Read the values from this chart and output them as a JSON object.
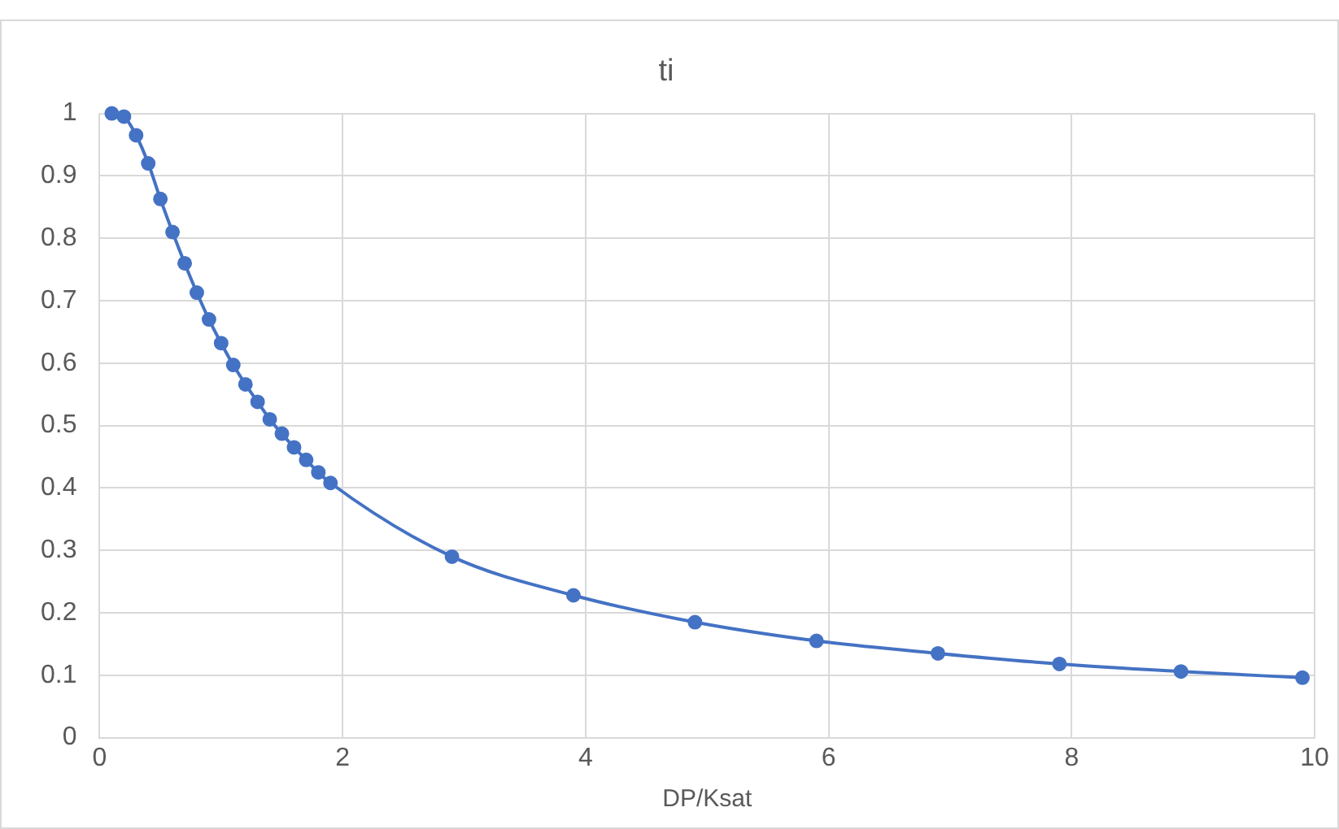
{
  "chart_data": {
    "type": "line",
    "title": "ti",
    "xlabel": "DP/Ksat",
    "x": [
      0.1,
      0.2,
      0.3,
      0.4,
      0.5,
      0.6,
      0.7,
      0.8,
      0.9,
      1.0,
      1.1,
      1.2,
      1.3,
      1.4,
      1.5,
      1.6,
      1.7,
      1.8,
      1.9,
      2.9,
      3.9,
      4.9,
      5.9,
      6.9,
      7.9,
      8.9,
      9.9
    ],
    "series": [
      {
        "color": "#4472c4",
        "values": [
          1.0,
          0.995,
          0.965,
          0.92,
          0.863,
          0.81,
          0.76,
          0.713,
          0.67,
          0.632,
          0.597,
          0.566,
          0.538,
          0.51,
          0.487,
          0.465,
          0.445,
          0.425,
          0.408,
          0.29,
          0.228,
          0.185,
          0.155,
          0.135,
          0.118,
          0.106,
          0.096
        ]
      }
    ],
    "xlim": [
      0,
      10
    ],
    "xticks": [
      0,
      2,
      4,
      6,
      8,
      10
    ],
    "ylim": [
      0,
      1
    ],
    "yticks": [
      0,
      0.1,
      0.2,
      0.3,
      0.4,
      0.5,
      0.6,
      0.7,
      0.8,
      0.9,
      1
    ],
    "grid": true,
    "legend": false,
    "marker": "circle",
    "line_style": "solid"
  }
}
